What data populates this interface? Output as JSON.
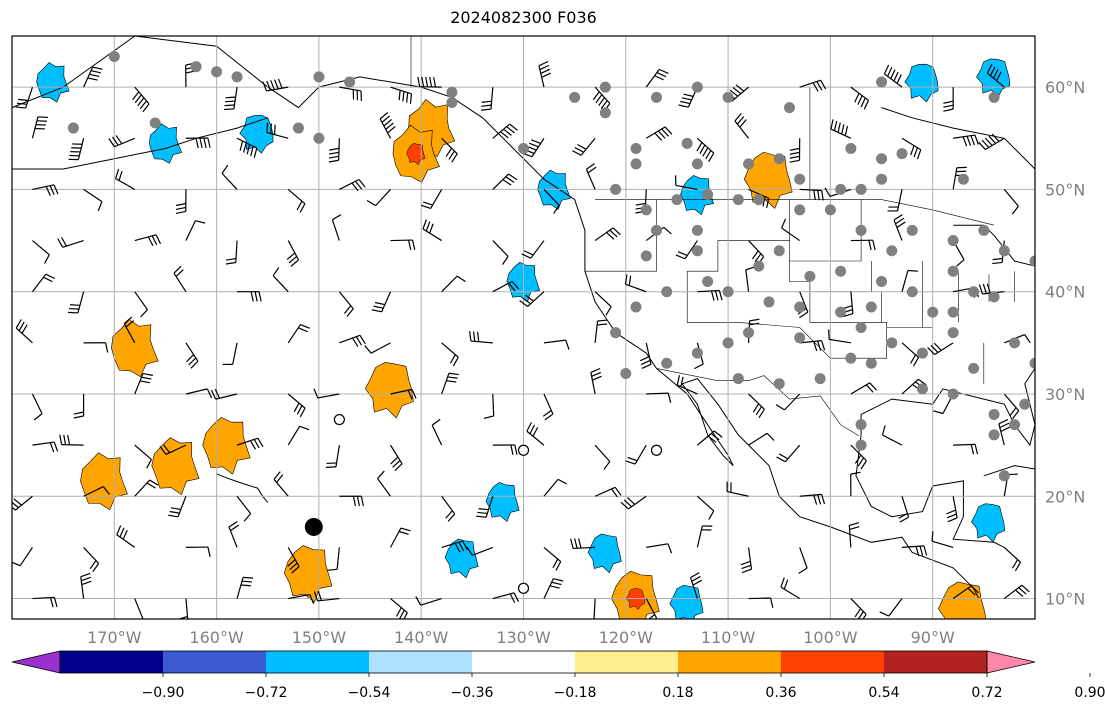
{
  "title": "2024082300 F036",
  "map": {
    "projection": "plate-carree",
    "lon_range": [
      -180,
      -80
    ],
    "lat_range": [
      8,
      65
    ],
    "grid": true,
    "lon_ticks": [
      -170,
      -160,
      -150,
      -140,
      -130,
      -120,
      -110,
      -100,
      -90
    ],
    "lon_tick_labels": [
      "170°W",
      "160°W",
      "150°W",
      "140°W",
      "130°W",
      "120°W",
      "110°W",
      "100°W",
      "90°W"
    ],
    "lat_ticks": [
      10,
      20,
      30,
      40,
      50,
      60
    ],
    "lat_tick_labels": [
      "10°N",
      "20°N",
      "30°N",
      "40°N",
      "50°N",
      "60°N"
    ],
    "grid_color": "#b0b0b0",
    "tick_label_color": "#808080"
  },
  "colorbar": {
    "levels": [
      "−0.90",
      "−0.72",
      "−0.54",
      "−0.36",
      "−0.18",
      "0.18",
      "0.36",
      "0.54",
      "0.72",
      "0.90"
    ],
    "colors": [
      "#9b30d0",
      "#00008b",
      "#3a5bd0",
      "#00bfff",
      "#aee0ff",
      "#ffffff",
      "#ffee90",
      "#ffa500",
      "#ff4000",
      "#b22222",
      "#ff88aa"
    ],
    "extend": "both"
  },
  "fields": {
    "positive_regions": [
      {
        "lon": -139,
        "lat": 56,
        "value": 0.54
      },
      {
        "lon": -140.5,
        "lat": 53.5,
        "value": 0.72
      },
      {
        "lon": -168,
        "lat": 34.5,
        "value": 0.54
      },
      {
        "lon": -171,
        "lat": 21.5,
        "value": 0.54
      },
      {
        "lon": -164,
        "lat": 23,
        "value": 0.54
      },
      {
        "lon": -159,
        "lat": 25,
        "value": 0.54
      },
      {
        "lon": -151,
        "lat": 12.5,
        "value": 0.54
      },
      {
        "lon": -119,
        "lat": 10,
        "value": 0.72
      },
      {
        "lon": -106,
        "lat": 51,
        "value": 0.54
      },
      {
        "lon": -87,
        "lat": 9,
        "value": 0.54
      },
      {
        "lon": -143,
        "lat": 30.5,
        "value": 0.36
      }
    ],
    "negative_regions": [
      {
        "lon": -165,
        "lat": 54.5,
        "value": -0.54
      },
      {
        "lon": -176,
        "lat": 60.5,
        "value": -0.54
      },
      {
        "lon": -127,
        "lat": 50,
        "value": -0.54
      },
      {
        "lon": -130,
        "lat": 41,
        "value": -0.54
      },
      {
        "lon": -113,
        "lat": 49.5,
        "value": -0.54
      },
      {
        "lon": -132,
        "lat": 19.5,
        "value": -0.54
      },
      {
        "lon": -136,
        "lat": 14,
        "value": -0.54
      },
      {
        "lon": -122,
        "lat": 14.5,
        "value": -0.54
      },
      {
        "lon": -114,
        "lat": 9.5,
        "value": -0.54
      },
      {
        "lon": -84.5,
        "lat": 17.5,
        "value": -0.54
      },
      {
        "lon": -84,
        "lat": 61,
        "value": -0.54
      },
      {
        "lon": -91,
        "lat": 60.5,
        "value": -0.54
      },
      {
        "lon": -156,
        "lat": 55.5,
        "value": -0.54
      }
    ]
  },
  "station_dots": [
    [
      -170,
      63
    ],
    [
      -162,
      62
    ],
    [
      -158,
      61
    ],
    [
      -174,
      56
    ],
    [
      -166,
      56.5
    ],
    [
      -152,
      56
    ],
    [
      -150,
      61
    ],
    [
      -137,
      59.5
    ],
    [
      -125,
      59
    ],
    [
      -122,
      57.5
    ],
    [
      -117,
      59
    ],
    [
      -110,
      59
    ],
    [
      -104,
      58
    ],
    [
      -119,
      54
    ],
    [
      -119,
      52.5
    ],
    [
      -113,
      52.5
    ],
    [
      -114,
      54.5
    ],
    [
      -108,
      52.5
    ],
    [
      -105,
      53
    ],
    [
      -103,
      51
    ],
    [
      -99,
      50
    ],
    [
      -97,
      50
    ],
    [
      -95,
      51
    ],
    [
      -98,
      54
    ],
    [
      -95,
      53
    ],
    [
      -93,
      53.5
    ],
    [
      -107,
      49
    ],
    [
      -115,
      49
    ],
    [
      -112,
      49.5
    ],
    [
      -109,
      49
    ],
    [
      -121,
      50
    ],
    [
      -118,
      48
    ],
    [
      -117,
      46
    ],
    [
      -113,
      46
    ],
    [
      -118,
      43.5
    ],
    [
      -113,
      44
    ],
    [
      -105,
      44
    ],
    [
      -103,
      48
    ],
    [
      -100,
      48
    ],
    [
      -97,
      46
    ],
    [
      -94,
      44
    ],
    [
      -92,
      40
    ],
    [
      -95,
      41
    ],
    [
      -99,
      42
    ],
    [
      -102,
      41.5
    ],
    [
      -107,
      42.5
    ],
    [
      -110,
      40
    ],
    [
      -112,
      41
    ],
    [
      -119,
      38.5
    ],
    [
      -121,
      36
    ],
    [
      -116,
      40
    ],
    [
      -106,
      39
    ],
    [
      -103,
      38.5
    ],
    [
      -99,
      38
    ],
    [
      -96,
      38.5
    ],
    [
      -94,
      35
    ],
    [
      -97,
      36.5
    ],
    [
      -103,
      35.5
    ],
    [
      -108,
      36
    ],
    [
      -110,
      35
    ],
    [
      -113,
      34
    ],
    [
      -116,
      33
    ],
    [
      -120,
      32
    ],
    [
      -109,
      31.5
    ],
    [
      -105,
      31
    ],
    [
      -101,
      31.5
    ],
    [
      -96,
      33
    ],
    [
      -98,
      33.5
    ],
    [
      -91,
      34
    ],
    [
      -88,
      36
    ],
    [
      -86,
      32.5
    ],
    [
      -91,
      30.5
    ],
    [
      -88,
      30
    ],
    [
      -84,
      28
    ],
    [
      -82,
      27
    ],
    [
      -82,
      35
    ],
    [
      -86,
      40
    ],
    [
      -83,
      44
    ],
    [
      -80,
      43
    ],
    [
      -88,
      42
    ],
    [
      -85,
      46
    ],
    [
      -92,
      46
    ],
    [
      -88,
      45
    ],
    [
      -97,
      27
    ],
    [
      -97,
      25
    ],
    [
      -84,
      39.5
    ],
    [
      -88,
      38
    ],
    [
      -90,
      38
    ],
    [
      -81,
      29
    ],
    [
      -80,
      33
    ],
    [
      -84,
      26
    ],
    [
      -83,
      22
    ],
    [
      -84,
      59
    ],
    [
      -87,
      51
    ],
    [
      -95,
      60.5
    ],
    [
      -113,
      60
    ],
    [
      -122,
      60
    ],
    [
      -130,
      54
    ],
    [
      -137,
      58.5
    ],
    [
      -147,
      60.5
    ],
    [
      -160,
      61.5
    ],
    [
      -150,
      55
    ]
  ],
  "big_circles": [
    {
      "lon": -150.5,
      "lat": 17,
      "filled": true
    },
    {
      "lon": -148,
      "lat": 27.5,
      "filled": false
    },
    {
      "lon": -130,
      "lat": 24.5,
      "filled": false
    },
    {
      "lon": -117,
      "lat": 24.5,
      "filled": false
    },
    {
      "lon": -130,
      "lat": 11,
      "filled": false
    }
  ],
  "wind_barbs": {
    "lon_step": 5,
    "lat_step": 5,
    "lon_start": -178,
    "lat_start": 10,
    "lat_end": 63
  }
}
